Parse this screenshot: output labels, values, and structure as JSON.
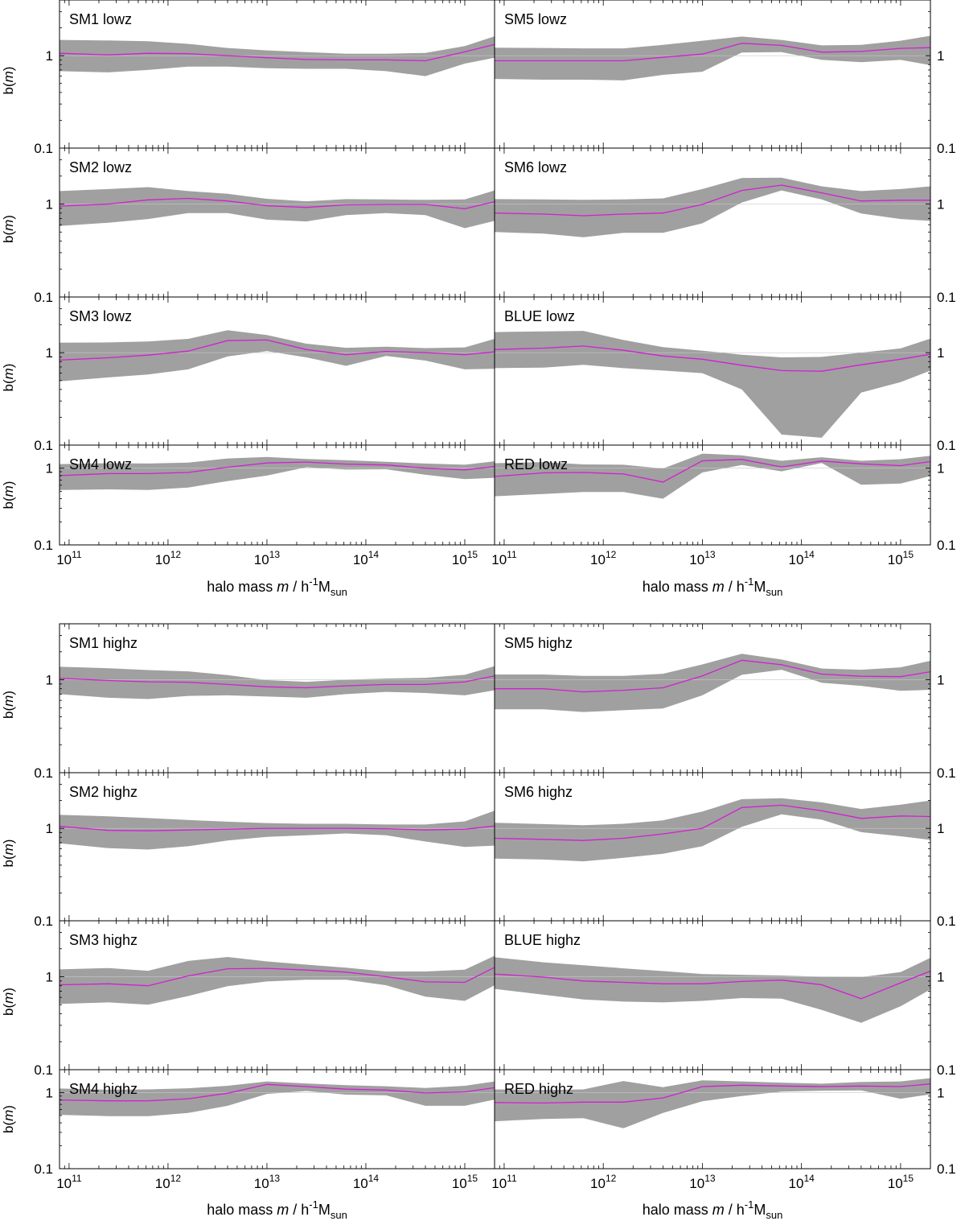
{
  "figure": {
    "x_label_text": "halo mass",
    "x_label_var": "m",
    "x_label_unit": "/ h",
    "x_label_exp": "-1",
    "x_label_M": "M",
    "x_label_sub": "sun",
    "y_label_prefix": "b(",
    "y_label_var": "m",
    "y_label_suffix": ")"
  },
  "chart_data": {
    "type": "line-with-band",
    "x_log": true,
    "y_log": true,
    "xlim": [
      80000000000.0,
      2000000000000000.0
    ],
    "x_ticks": [
      {
        "base": "10",
        "exp": "11",
        "value": 100000000000.0
      },
      {
        "base": "10",
        "exp": "12",
        "value": 1000000000000.0
      },
      {
        "base": "10",
        "exp": "13",
        "value": 10000000000000.0
      },
      {
        "base": "10",
        "exp": "14",
        "value": 100000000000000.0
      },
      {
        "base": "10",
        "exp": "15",
        "value": 1000000000000000.0
      }
    ],
    "y_tick_labels": [
      "1",
      "0.1"
    ],
    "x": [
      80000000000.0,
      250000000000.0,
      630000000000.0,
      1600000000000.0,
      4000000000000.0,
      10000000000000.0,
      25000000000000.0,
      63000000000000.0,
      160000000000000.0,
      400000000000000.0,
      1000000000000000.0,
      2000000000000000.0
    ],
    "panels": [
      {
        "name": "SM1 lowz",
        "ylim": [
          0.1,
          4.0
        ],
        "median": [
          1.06,
          1.02,
          1.06,
          1.05,
          1.0,
          0.95,
          0.91,
          0.9,
          0.9,
          0.88,
          1.1,
          1.32
        ],
        "lower": [
          0.68,
          0.66,
          0.7,
          0.76,
          0.76,
          0.73,
          0.72,
          0.72,
          0.68,
          0.6,
          0.82,
          0.95
        ],
        "upper": [
          1.48,
          1.46,
          1.43,
          1.34,
          1.21,
          1.14,
          1.09,
          1.05,
          1.05,
          1.07,
          1.27,
          1.62
        ]
      },
      {
        "name": "SM5 lowz",
        "ylim": [
          0.1,
          4.0
        ],
        "median": [
          0.88,
          0.88,
          0.88,
          0.88,
          0.96,
          1.04,
          1.36,
          1.29,
          1.09,
          1.11,
          1.2,
          1.22
        ],
        "lower": [
          0.56,
          0.55,
          0.55,
          0.54,
          0.62,
          0.67,
          1.08,
          1.09,
          0.9,
          0.85,
          0.9,
          0.79
        ],
        "upper": [
          1.22,
          1.21,
          1.2,
          1.2,
          1.31,
          1.45,
          1.61,
          1.48,
          1.29,
          1.31,
          1.45,
          1.64
        ]
      },
      {
        "name": "SM2 lowz",
        "ylim": [
          0.1,
          4.0
        ],
        "median": [
          0.95,
          1.0,
          1.11,
          1.15,
          1.08,
          0.96,
          0.92,
          0.98,
          0.99,
          0.99,
          0.89,
          1.06
        ],
        "lower": [
          0.58,
          0.63,
          0.69,
          0.8,
          0.8,
          0.68,
          0.65,
          0.76,
          0.8,
          0.76,
          0.55,
          0.66
        ],
        "upper": [
          1.38,
          1.45,
          1.52,
          1.38,
          1.29,
          1.14,
          1.07,
          1.13,
          1.12,
          1.11,
          1.12,
          1.4
        ]
      },
      {
        "name": "SM6 lowz",
        "ylim": [
          0.1,
          4.0
        ],
        "median": [
          0.8,
          0.78,
          0.75,
          0.78,
          0.8,
          0.99,
          1.4,
          1.6,
          1.32,
          1.08,
          1.1,
          1.1
        ],
        "lower": [
          0.5,
          0.48,
          0.44,
          0.49,
          0.49,
          0.62,
          1.04,
          1.4,
          1.12,
          0.79,
          0.69,
          0.66
        ],
        "upper": [
          1.13,
          1.12,
          1.11,
          1.12,
          1.15,
          1.45,
          1.91,
          1.92,
          1.55,
          1.38,
          1.45,
          1.55
        ]
      },
      {
        "name": "SM3 lowz",
        "ylim": [
          0.1,
          4.0
        ],
        "median": [
          0.83,
          0.88,
          0.94,
          1.04,
          1.35,
          1.37,
          1.08,
          0.95,
          1.03,
          1.0,
          0.95,
          1.02
        ],
        "lower": [
          0.49,
          0.54,
          0.58,
          0.66,
          0.91,
          1.04,
          0.89,
          0.72,
          0.92,
          0.82,
          0.66,
          0.67
        ],
        "upper": [
          1.28,
          1.29,
          1.32,
          1.41,
          1.75,
          1.55,
          1.25,
          1.13,
          1.16,
          1.12,
          1.14,
          1.41
        ]
      },
      {
        "name": "BLUE lowz",
        "ylim": [
          0.1,
          4.0
        ],
        "median": [
          1.08,
          1.12,
          1.18,
          1.06,
          0.92,
          0.85,
          0.73,
          0.64,
          0.63,
          0.74,
          0.85,
          0.96
        ],
        "lower": [
          0.68,
          0.69,
          0.74,
          0.68,
          0.64,
          0.6,
          0.4,
          0.13,
          0.12,
          0.37,
          0.48,
          0.64
        ],
        "upper": [
          1.67,
          1.7,
          1.72,
          1.37,
          1.15,
          1.05,
          0.95,
          0.89,
          0.9,
          1.0,
          1.11,
          1.42
        ]
      },
      {
        "name": "SM4 lowz",
        "ylim": [
          0.1,
          2.0
        ],
        "median": [
          0.8,
          0.85,
          0.85,
          0.88,
          1.03,
          1.17,
          1.2,
          1.13,
          1.1,
          1.0,
          0.95,
          1.05
        ],
        "lower": [
          0.52,
          0.53,
          0.52,
          0.56,
          0.68,
          0.8,
          1.03,
          0.96,
          0.97,
          0.82,
          0.72,
          0.75
        ],
        "upper": [
          1.13,
          1.16,
          1.15,
          1.18,
          1.34,
          1.4,
          1.32,
          1.27,
          1.21,
          1.15,
          1.11,
          1.23
        ]
      },
      {
        "name": "RED lowz",
        "ylim": [
          0.1,
          2.0
        ],
        "median": [
          0.78,
          0.87,
          0.88,
          0.84,
          0.66,
          1.25,
          1.3,
          1.04,
          1.24,
          1.14,
          1.08,
          1.22
        ],
        "lower": [
          0.43,
          0.46,
          0.49,
          0.49,
          0.4,
          0.88,
          1.1,
          0.91,
          1.17,
          0.61,
          0.63,
          0.79
        ],
        "upper": [
          1.16,
          1.2,
          1.12,
          1.11,
          0.99,
          1.55,
          1.47,
          1.25,
          1.39,
          1.25,
          1.31,
          1.45
        ]
      },
      {
        "name": "SM1 highz",
        "ylim": [
          0.1,
          4.0
        ],
        "median": [
          1.04,
          0.98,
          0.95,
          0.94,
          0.89,
          0.84,
          0.82,
          0.86,
          0.89,
          0.89,
          0.95,
          1.1
        ],
        "lower": [
          0.7,
          0.64,
          0.62,
          0.67,
          0.68,
          0.66,
          0.64,
          0.7,
          0.74,
          0.72,
          0.68,
          0.77
        ],
        "upper": [
          1.38,
          1.33,
          1.27,
          1.23,
          1.12,
          0.99,
          0.95,
          1.0,
          1.03,
          1.05,
          1.13,
          1.4
        ]
      },
      {
        "name": "SM5 highz",
        "ylim": [
          0.1,
          4.0
        ],
        "median": [
          0.8,
          0.8,
          0.74,
          0.77,
          0.82,
          1.1,
          1.62,
          1.45,
          1.15,
          1.09,
          1.08,
          1.22
        ],
        "lower": [
          0.48,
          0.48,
          0.45,
          0.47,
          0.49,
          0.68,
          1.13,
          1.28,
          0.93,
          0.86,
          0.76,
          0.78
        ],
        "upper": [
          1.14,
          1.14,
          1.1,
          1.1,
          1.16,
          1.46,
          1.9,
          1.65,
          1.32,
          1.28,
          1.36,
          1.6
        ]
      },
      {
        "name": "SM2 highz",
        "ylim": [
          0.1,
          4.0
        ],
        "median": [
          1.05,
          0.95,
          0.94,
          0.96,
          0.98,
          1.0,
          1.0,
          1.0,
          0.99,
          0.96,
          0.98,
          1.06
        ],
        "lower": [
          0.69,
          0.61,
          0.59,
          0.64,
          0.74,
          0.81,
          0.84,
          0.88,
          0.84,
          0.72,
          0.63,
          0.65
        ],
        "upper": [
          1.4,
          1.35,
          1.29,
          1.23,
          1.18,
          1.14,
          1.12,
          1.12,
          1.1,
          1.1,
          1.19,
          1.55
        ]
      },
      {
        "name": "SM6 highz",
        "ylim": [
          0.1,
          4.0
        ],
        "median": [
          0.78,
          0.76,
          0.74,
          0.78,
          0.87,
          1.0,
          1.68,
          1.78,
          1.55,
          1.28,
          1.36,
          1.34
        ],
        "lower": [
          0.47,
          0.46,
          0.44,
          0.48,
          0.53,
          0.64,
          1.04,
          1.42,
          1.24,
          0.91,
          0.82,
          0.75
        ],
        "upper": [
          1.15,
          1.11,
          1.08,
          1.12,
          1.22,
          1.52,
          2.07,
          2.12,
          1.91,
          1.62,
          1.8,
          2.0
        ]
      },
      {
        "name": "SM3 highz",
        "ylim": [
          0.1,
          4.0
        ],
        "median": [
          0.82,
          0.84,
          0.8,
          1.02,
          1.22,
          1.23,
          1.18,
          1.12,
          1.0,
          0.88,
          0.87,
          1.26
        ],
        "lower": [
          0.51,
          0.53,
          0.5,
          0.62,
          0.79,
          0.89,
          0.93,
          0.93,
          0.81,
          0.61,
          0.55,
          0.81
        ],
        "upper": [
          1.2,
          1.24,
          1.16,
          1.48,
          1.63,
          1.46,
          1.35,
          1.25,
          1.14,
          1.14,
          1.19,
          1.68
        ]
      },
      {
        "name": "BLUE highz",
        "ylim": [
          0.1,
          4.0
        ],
        "median": [
          1.07,
          0.99,
          0.9,
          0.87,
          0.84,
          0.84,
          0.89,
          0.92,
          0.82,
          0.58,
          0.86,
          1.15
        ],
        "lower": [
          0.74,
          0.64,
          0.57,
          0.54,
          0.53,
          0.55,
          0.59,
          0.58,
          0.44,
          0.32,
          0.48,
          0.73
        ],
        "upper": [
          1.62,
          1.43,
          1.33,
          1.23,
          1.15,
          1.07,
          1.05,
          1.03,
          1.0,
          0.99,
          1.12,
          1.6
        ]
      },
      {
        "name": "SM4 highz",
        "ylim": [
          0.1,
          2.0
        ],
        "median": [
          0.8,
          0.78,
          0.78,
          0.83,
          0.98,
          1.28,
          1.2,
          1.11,
          1.08,
          0.99,
          1.02,
          1.16
        ],
        "lower": [
          0.51,
          0.49,
          0.49,
          0.54,
          0.67,
          0.96,
          1.05,
          0.94,
          0.92,
          0.67,
          0.67,
          0.81
        ],
        "upper": [
          1.13,
          1.09,
          1.1,
          1.14,
          1.23,
          1.4,
          1.32,
          1.25,
          1.21,
          1.15,
          1.23,
          1.4
        ]
      },
      {
        "name": "RED highz",
        "ylim": [
          0.1,
          2.0
        ],
        "median": [
          0.74,
          0.73,
          0.75,
          0.75,
          0.85,
          1.2,
          1.25,
          1.22,
          1.2,
          1.22,
          1.2,
          1.3
        ],
        "lower": [
          0.42,
          0.45,
          0.46,
          0.34,
          0.54,
          0.77,
          0.9,
          1.03,
          1.06,
          1.07,
          0.83,
          0.95
        ],
        "upper": [
          1.1,
          1.08,
          1.1,
          1.42,
          1.18,
          1.45,
          1.4,
          1.35,
          1.31,
          1.38,
          1.4,
          1.55
        ]
      }
    ]
  }
}
